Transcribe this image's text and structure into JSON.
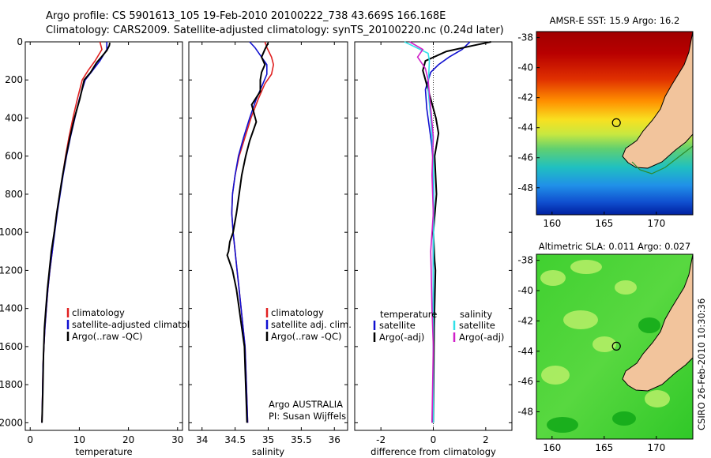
{
  "figure": {
    "title_line1": "Argo profile: CS 5901613_105 19-Feb-2010 20100222_738 43.669S 166.168E",
    "title_line2": "Climatology: CARS2009. Satellite-adjusted climatology: synTS_20100220.nc (0.24d later)",
    "side_label": "CSIRO 26-Feb-2010 10:30:36",
    "credit_line1": "Argo AUSTRALIA",
    "credit_line2": "PI: Susan Wijffels"
  },
  "colors": {
    "climatology": "#e02020",
    "satellite": "#1010d0",
    "argo": "#000000",
    "satellite_diff": "#30e0e8",
    "argo_diff": "#d020c8",
    "land": "#f2c49c"
  },
  "chart_data": [
    {
      "type": "line",
      "xlabel": "temperature",
      "xlim": [
        -1,
        31
      ],
      "xticks": [
        0,
        10,
        20,
        30
      ],
      "ylim": [
        2040,
        0
      ],
      "yticks": [
        0,
        200,
        400,
        600,
        800,
        1000,
        1200,
        1400,
        1600,
        1800,
        2000
      ],
      "legend_location": "lower-middle",
      "series": [
        {
          "name": "climatology",
          "color": "#e02020",
          "x": [
            14.2,
            14.6,
            13.2,
            11.8,
            10.6,
            9.6,
            8.7,
            7.9,
            7.2,
            6.6,
            6.0,
            5.4,
            4.9,
            4.5,
            4.0,
            3.6,
            3.3,
            3.0,
            2.8,
            2.6,
            2.5,
            2.4
          ],
          "y": [
            0,
            40,
            100,
            150,
            200,
            300,
            400,
            500,
            600,
            700,
            800,
            900,
            1000,
            1100,
            1200,
            1300,
            1400,
            1500,
            1600,
            1700,
            1850,
            2000
          ]
        },
        {
          "name": "satellite-adjusted climatology",
          "color": "#1010d0",
          "x": [
            15.6,
            15.6,
            14.2,
            12.7,
            11.2,
            10.0,
            9.1,
            8.2,
            7.4,
            6.7,
            6.1,
            5.5,
            5.0,
            4.5,
            4.0,
            3.6,
            3.3,
            3.0,
            2.8,
            2.6,
            2.5,
            2.4
          ],
          "y": [
            0,
            40,
            100,
            150,
            200,
            300,
            400,
            500,
            600,
            700,
            800,
            900,
            1000,
            1100,
            1200,
            1300,
            1400,
            1500,
            1600,
            1700,
            1850,
            2000
          ]
        },
        {
          "name": "Argo(..raw -QC)",
          "color": "#000000",
          "x": [
            16.2,
            16.1,
            15.6,
            14.8,
            13.5,
            12.3,
            11.0,
            10.1,
            9.0,
            8.1,
            7.3,
            6.6,
            6.0,
            5.4,
            4.9,
            4.3,
            3.9,
            3.5,
            3.2,
            2.9,
            2.7,
            2.55,
            2.4
          ],
          "y": [
            5,
            20,
            45,
            70,
            110,
            160,
            200,
            300,
            400,
            500,
            600,
            700,
            800,
            900,
            1000,
            1100,
            1200,
            1300,
            1400,
            1500,
            1650,
            1850,
            2000
          ]
        }
      ]
    },
    {
      "type": "line",
      "xlabel": "salinity",
      "xlim": [
        33.8,
        36.2
      ],
      "xticks": [
        34,
        34.5,
        35,
        35.5,
        36
      ],
      "xticklabels": [
        "34",
        "34.5",
        "35",
        "35.5",
        "36"
      ],
      "ylim": [
        2040,
        0
      ],
      "yticks": [
        0,
        200,
        400,
        600,
        800,
        1000,
        1200,
        1400,
        1600,
        1800,
        2000
      ],
      "legend_location": "lower-right",
      "series": [
        {
          "name": "climatology",
          "color": "#e02020",
          "x": [
            34.95,
            34.98,
            35.05,
            35.08,
            35.05,
            34.95,
            34.85,
            34.74,
            34.65,
            34.56,
            34.5,
            34.46,
            34.45,
            34.47,
            34.5,
            34.53,
            34.56,
            34.59,
            34.62,
            34.65,
            34.67,
            34.69
          ],
          "y": [
            0,
            30,
            80,
            120,
            170,
            220,
            300,
            400,
            500,
            600,
            700,
            800,
            900,
            1000,
            1100,
            1200,
            1300,
            1400,
            1500,
            1600,
            1800,
            2000
          ]
        },
        {
          "name": "satellite adj. clim.",
          "color": "#1010d0",
          "x": [
            34.72,
            34.8,
            34.9,
            34.98,
            34.98,
            34.92,
            34.82,
            34.72,
            34.63,
            34.55,
            34.5,
            34.46,
            34.45,
            34.47,
            34.5,
            34.53,
            34.56,
            34.59,
            34.62,
            34.65,
            34.67,
            34.69
          ],
          "y": [
            0,
            30,
            80,
            120,
            170,
            220,
            300,
            400,
            500,
            600,
            700,
            800,
            900,
            1000,
            1100,
            1200,
            1300,
            1400,
            1500,
            1600,
            1800,
            2000
          ]
        },
        {
          "name": "Argo(..raw -QC)",
          "color": "#000000",
          "x": [
            35.0,
            34.95,
            34.9,
            34.95,
            34.9,
            34.88,
            34.88,
            34.75,
            34.82,
            34.72,
            34.66,
            34.6,
            34.56,
            34.52,
            34.47,
            34.42,
            34.4,
            34.38,
            34.46,
            34.52,
            34.56,
            34.6,
            34.64,
            34.66,
            34.68
          ],
          "y": [
            5,
            40,
            80,
            120,
            160,
            200,
            260,
            330,
            420,
            520,
            600,
            700,
            800,
            900,
            1000,
            1050,
            1100,
            1120,
            1200,
            1300,
            1400,
            1500,
            1600,
            1800,
            2000
          ]
        }
      ]
    },
    {
      "type": "line",
      "xlabel": "difference from climatology",
      "xlim": [
        -3,
        3
      ],
      "xticks": [
        -2,
        0,
        2
      ],
      "xticklabels": [
        "-2",
        "0",
        "2"
      ],
      "ylim": [
        2040,
        0
      ],
      "yticks": [
        0,
        200,
        400,
        600,
        800,
        1000,
        1200,
        1400,
        1600,
        1800,
        2000
      ],
      "legend_location": "lower-middle",
      "legend_headings": [
        "temperature",
        "salinity"
      ],
      "series": [
        {
          "name": "satellite",
          "group": "temperature",
          "color": "#1010d0",
          "x": [
            1.4,
            1.1,
            0.6,
            0.2,
            -0.1,
            -0.3,
            -0.25,
            -0.15,
            -0.05,
            0.0,
            0.0,
            0.0,
            0.0,
            0.0,
            0.0,
            0.0
          ],
          "y": [
            0,
            40,
            80,
            120,
            160,
            250,
            350,
            450,
            550,
            650,
            800,
            1000,
            1200,
            1500,
            1800,
            2000
          ]
        },
        {
          "name": "Argo(-adj)",
          "group": "temperature",
          "color": "#000000",
          "x": [
            2.2,
            1.5,
            0.5,
            -0.3,
            -0.4,
            -0.2,
            0.1,
            0.2,
            0.05,
            0.12,
            0.0,
            0.05,
            0.08,
            0.03,
            0.0
          ],
          "y": [
            0,
            20,
            50,
            100,
            150,
            250,
            400,
            480,
            600,
            800,
            1000,
            1150,
            1200,
            1500,
            2000
          ]
        },
        {
          "name": "satellite",
          "group": "salinity",
          "color": "#30e0e8",
          "x": [
            -1.1,
            -0.8,
            -0.5,
            -0.2,
            -0.15,
            -0.2,
            -0.1,
            0.0,
            0.02,
            0.0,
            0.0,
            0.0
          ],
          "y": [
            0,
            20,
            40,
            60,
            100,
            250,
            400,
            600,
            800,
            1200,
            1600,
            2000
          ]
        },
        {
          "name": "Argo(-adj)",
          "group": "salinity",
          "color": "#d020c8",
          "x": [
            -0.9,
            -0.4,
            -0.6,
            -0.3,
            -0.2,
            -0.1,
            0.0,
            -0.05,
            0.0,
            -0.1,
            -0.08,
            -0.05,
            0.0,
            -0.05
          ],
          "y": [
            0,
            40,
            80,
            140,
            200,
            350,
            500,
            700,
            900,
            1100,
            1200,
            1400,
            1600,
            2000
          ]
        }
      ]
    },
    {
      "type": "heatmap",
      "title": "AMSR-E SST: 15.9 Argo: 16.2",
      "xlim": [
        158.5,
        173.5
      ],
      "ylim": [
        -49.8,
        -37.6
      ],
      "xticks": [
        160,
        165,
        170
      ],
      "yticks": [
        -38,
        -40,
        -42,
        -44,
        -46,
        -48
      ],
      "marker": {
        "lon": 166.168,
        "lat": -43.669
      },
      "grid": false
    },
    {
      "type": "heatmap",
      "title": "Altimetric SLA: 0.011 Argo: 0.027",
      "xlim": [
        158.5,
        173.5
      ],
      "ylim": [
        -49.8,
        -37.6
      ],
      "xticks": [
        160,
        165,
        170
      ],
      "yticks": [
        -38,
        -40,
        -42,
        -44,
        -46,
        -48
      ],
      "marker": {
        "lon": 166.168,
        "lat": -43.669
      },
      "grid": false
    }
  ]
}
